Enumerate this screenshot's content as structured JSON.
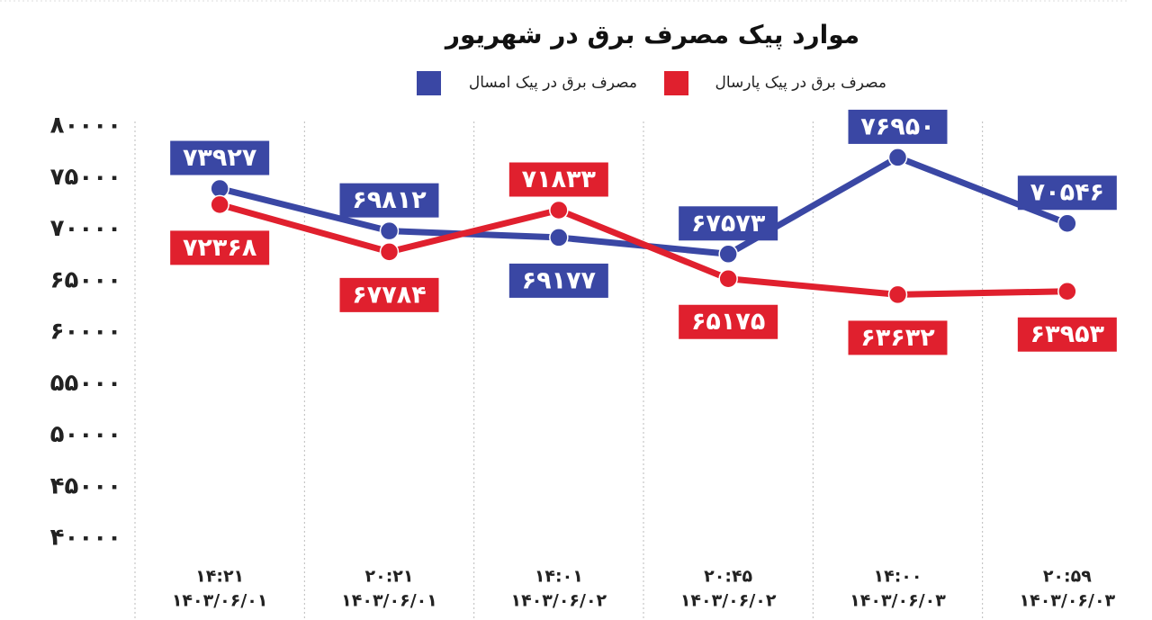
{
  "chart_data": {
    "type": "line",
    "title": "موارد پیک مصرف برق در شهریور",
    "categories": [
      {
        "time": "۱۴:۲۱",
        "date": "۱۴۰۳/۰۶/۰۱"
      },
      {
        "time": "۲۰:۲۱",
        "date": "۱۴۰۳/۰۶/۰۱"
      },
      {
        "time": "۱۴:۰۱",
        "date": "۱۴۰۳/۰۶/۰۲"
      },
      {
        "time": "۲۰:۴۵",
        "date": "۱۴۰۳/۰۶/۰۲"
      },
      {
        "time": "۱۴:۰۰",
        "date": "۱۴۰۳/۰۶/۰۳"
      },
      {
        "time": "۲۰:۵۹",
        "date": "۱۴۰۳/۰۶/۰۳"
      }
    ],
    "series": [
      {
        "name": "مصرف برق در پیک امسال",
        "color": "#3a47a4",
        "values": [
          73927,
          69812,
          69177,
          67573,
          76950,
          70546
        ],
        "value_labels": [
          "۷۳۹۲۷",
          "۶۹۸۱۲",
          "۶۹۱۷۷",
          "۶۷۵۷۳",
          "۷۶۹۵۰",
          "۷۰۵۴۶"
        ]
      },
      {
        "name": "مصرف برق در پیک پارسال",
        "color": "#e0202e",
        "values": [
          72368,
          67784,
          71833,
          65175,
          63632,
          63953
        ],
        "value_labels": [
          "۷۲۳۶۸",
          "۶۷۷۸۴",
          "۷۱۸۳۳",
          "۶۵۱۷۵",
          "۶۳۶۳۲",
          "۶۳۹۵۳"
        ]
      }
    ],
    "ylim": [
      40000,
      80000
    ],
    "yticks": [
      {
        "value": 40000,
        "label": "۴۰۰۰۰"
      },
      {
        "value": 45000,
        "label": "۴۵۰۰۰"
      },
      {
        "value": 50000,
        "label": "۵۰۰۰۰"
      },
      {
        "value": 55000,
        "label": "۵۵۰۰۰"
      },
      {
        "value": 60000,
        "label": "۶۰۰۰۰"
      },
      {
        "value": 65000,
        "label": "۶۵۰۰۰"
      },
      {
        "value": 70000,
        "label": "۷۰۰۰۰"
      },
      {
        "value": 75000,
        "label": "۷۵۰۰۰"
      },
      {
        "value": 80000,
        "label": "۸۰۰۰۰"
      }
    ],
    "grid": false
  }
}
